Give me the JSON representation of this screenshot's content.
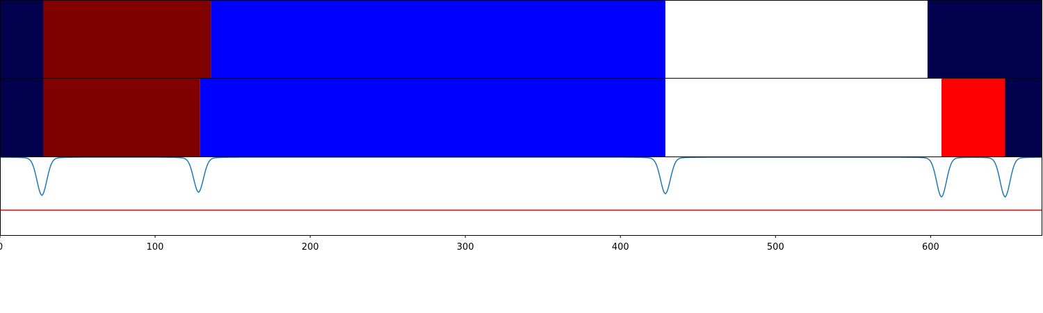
{
  "chart_data": {
    "type": "heatmap",
    "xlim": [
      0,
      672
    ],
    "x_ticks": [
      0,
      100,
      200,
      300,
      400,
      500,
      600
    ],
    "x_tick_labels": [
      "0",
      "100",
      "200",
      "300",
      "400",
      "500",
      "600"
    ],
    "tracks": [
      {
        "segments": [
          {
            "start": 0,
            "end": 28,
            "color": "#00004d"
          },
          {
            "start": 28,
            "end": 136,
            "color": "#800000"
          },
          {
            "start": 136,
            "end": 429,
            "color": "#0000ff"
          },
          {
            "start": 429,
            "end": 598,
            "color": "#ffffff"
          },
          {
            "start": 598,
            "end": 672,
            "color": "#00004d"
          }
        ]
      },
      {
        "segments": [
          {
            "start": 0,
            "end": 28,
            "color": "#00004d"
          },
          {
            "start": 28,
            "end": 129,
            "color": "#800000"
          },
          {
            "start": 129,
            "end": 429,
            "color": "#0000ff"
          },
          {
            "start": 429,
            "end": 607,
            "color": "#ffffff"
          },
          {
            "start": 607,
            "end": 648,
            "color": "#ff0000"
          },
          {
            "start": 648,
            "end": 672,
            "color": "#00004d"
          }
        ]
      }
    ],
    "signal": {
      "color": "#1f77b4",
      "ylim": [
        0,
        1
      ],
      "baseline": 1.0,
      "dips": [
        {
          "x": 27,
          "depth": 0.45
        },
        {
          "x": 128,
          "depth": 0.41
        },
        {
          "x": 429,
          "depth": 0.43
        },
        {
          "x": 607,
          "depth": 0.47
        },
        {
          "x": 648,
          "depth": 0.47
        }
      ]
    },
    "threshold": {
      "y": 0.32,
      "color": "#ff0000"
    }
  }
}
